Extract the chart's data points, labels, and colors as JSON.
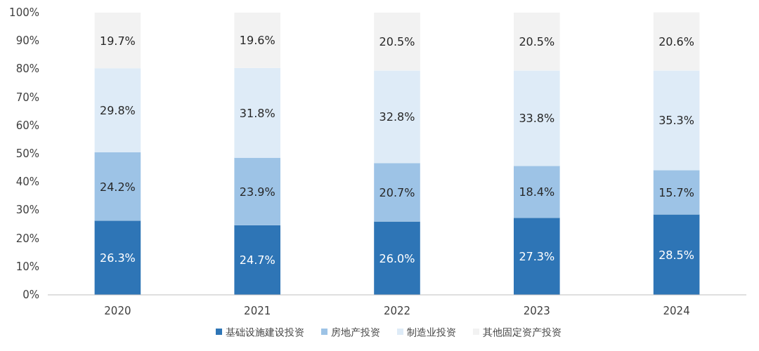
{
  "chart_data": {
    "type": "bar",
    "stacked": true,
    "categories": [
      "2020",
      "2021",
      "2022",
      "2023",
      "2024"
    ],
    "series": [
      {
        "name": "基础设施建设投资",
        "color": "#2e75b6",
        "values": [
          26.3,
          24.7,
          26.0,
          27.3,
          28.5
        ],
        "value_labels": [
          "26.3%",
          "24.7%",
          "26.0%",
          "27.3%",
          "28.5%"
        ]
      },
      {
        "name": "房地产投资",
        "color": "#9dc3e6",
        "values": [
          24.2,
          23.9,
          20.7,
          18.4,
          15.7
        ],
        "value_labels": [
          "24.2%",
          "23.9%",
          "20.7%",
          "18.4%",
          "15.7%"
        ]
      },
      {
        "name": "制造业投资",
        "color": "#deebf7",
        "values": [
          29.8,
          31.8,
          32.8,
          33.8,
          35.3
        ],
        "value_labels": [
          "29.8%",
          "31.8%",
          "32.8%",
          "33.8%",
          "35.3%"
        ]
      },
      {
        "name": "其他固定资产投资",
        "color": "#f2f2f2",
        "values": [
          19.7,
          19.6,
          20.5,
          20.5,
          20.6
        ],
        "value_labels": [
          "19.7%",
          "19.6%",
          "20.5%",
          "20.5%",
          "20.6%"
        ]
      }
    ],
    "ylim": [
      0,
      100
    ],
    "yticks": [
      {
        "value": 0,
        "label": "0%"
      },
      {
        "value": 10,
        "label": "10%"
      },
      {
        "value": 20,
        "label": "20%"
      },
      {
        "value": 30,
        "label": "30%"
      },
      {
        "value": 40,
        "label": "40%"
      },
      {
        "value": 50,
        "label": "50%"
      },
      {
        "value": 60,
        "label": "60%"
      },
      {
        "value": 70,
        "label": "70%"
      },
      {
        "value": 80,
        "label": "80%"
      },
      {
        "value": 90,
        "label": "90%"
      },
      {
        "value": 100,
        "label": "100%"
      }
    ],
    "legend": "bottom"
  }
}
